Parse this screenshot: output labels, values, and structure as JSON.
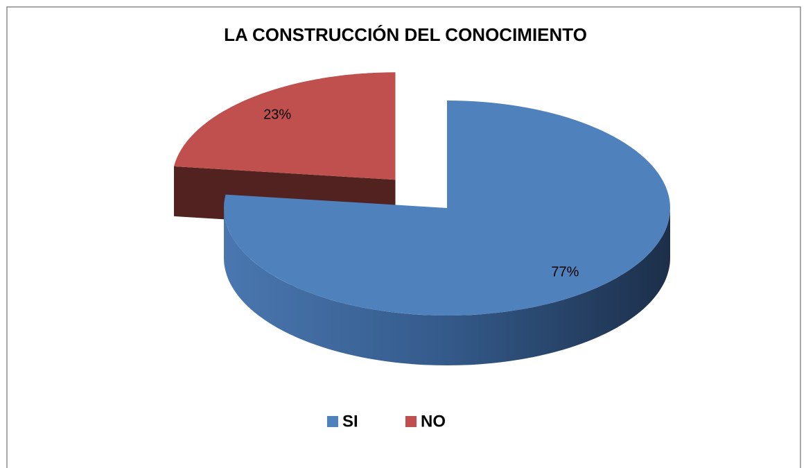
{
  "chart_data": {
    "type": "pie",
    "title": "LA CONSTRUCCIÓN DEL CONOCIMIENTO",
    "categories": [
      "SI",
      "NO"
    ],
    "values": [
      77,
      23
    ],
    "value_labels": [
      "77%",
      "23%"
    ],
    "colors": [
      "#4f81bd",
      "#c0504d"
    ],
    "legend": "bottom"
  }
}
